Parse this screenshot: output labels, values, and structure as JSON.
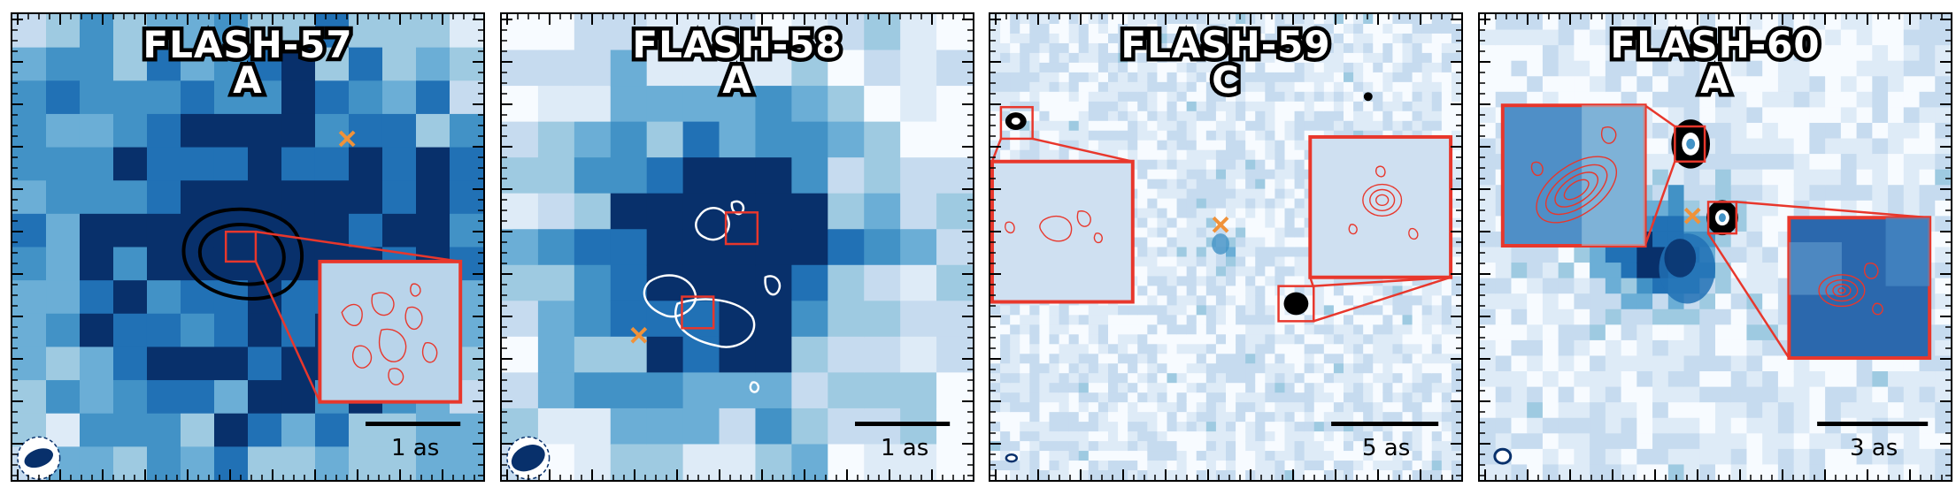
{
  "panels": [
    {
      "name": "FLASH-57",
      "component": "A",
      "scale_label": "1 as"
    },
    {
      "name": "FLASH-58",
      "component": "A",
      "scale_label": "1 as"
    },
    {
      "name": "FLASH-59",
      "component": "C",
      "scale_label": "5 as"
    },
    {
      "name": "FLASH-60",
      "component": "A",
      "scale_label": "3 as"
    }
  ],
  "colors": {
    "colormap": [
      "#f7fbff",
      "#deebf7",
      "#c6dbef",
      "#9ecae1",
      "#6baed6",
      "#4292c6",
      "#2171b5",
      "#08306b"
    ],
    "inset_border": "#e8372c",
    "marker": "#f0923a",
    "contour_black": "#000000",
    "contour_white": "#ffffff"
  },
  "markers": [
    "orange-cross"
  ]
}
